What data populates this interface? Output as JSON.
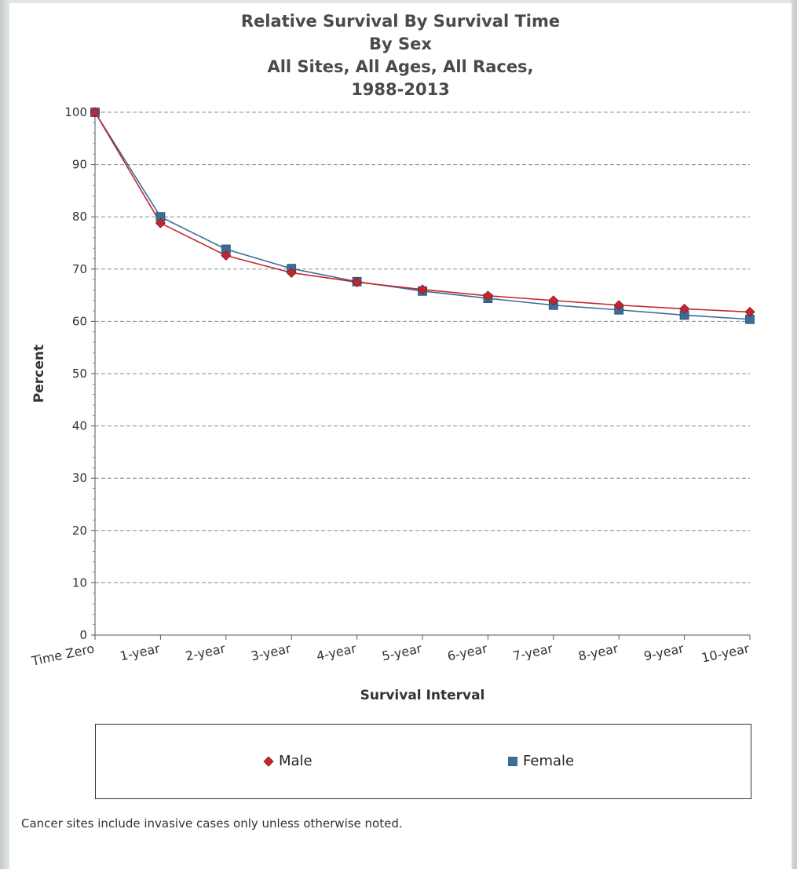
{
  "chart_data": {
    "type": "line",
    "title": [
      "Relative Survival By Survival Time",
      "By Sex",
      "All Sites, All Ages, All Races,",
      "1988-2013"
    ],
    "xlabel": "Survival Interval",
    "ylabel": "Percent",
    "ylim": [
      0,
      100
    ],
    "yticks": [
      0,
      10,
      20,
      30,
      40,
      50,
      60,
      70,
      80,
      90,
      100
    ],
    "grid": "horizontal-dashed",
    "legend_placement": "bottom",
    "categories": [
      "Time Zero",
      "1-year",
      "2-year",
      "3-year",
      "4-year",
      "5-year",
      "6-year",
      "7-year",
      "8-year",
      "9-year",
      "10-year"
    ],
    "series": [
      {
        "name": "Male",
        "color": "#c4262e",
        "marker": "diamond",
        "values": [
          100,
          78.8,
          72.6,
          69.3,
          67.5,
          66.1,
          64.9,
          64.0,
          63.1,
          62.4,
          61.8
        ]
      },
      {
        "name": "Female",
        "color": "#3c6e9a",
        "marker": "square",
        "values": [
          100,
          80.0,
          73.8,
          70.1,
          67.6,
          65.8,
          64.4,
          63.1,
          62.2,
          61.2,
          60.4
        ]
      }
    ]
  },
  "footnote": "Cancer sites include invasive cases only unless otherwise noted."
}
